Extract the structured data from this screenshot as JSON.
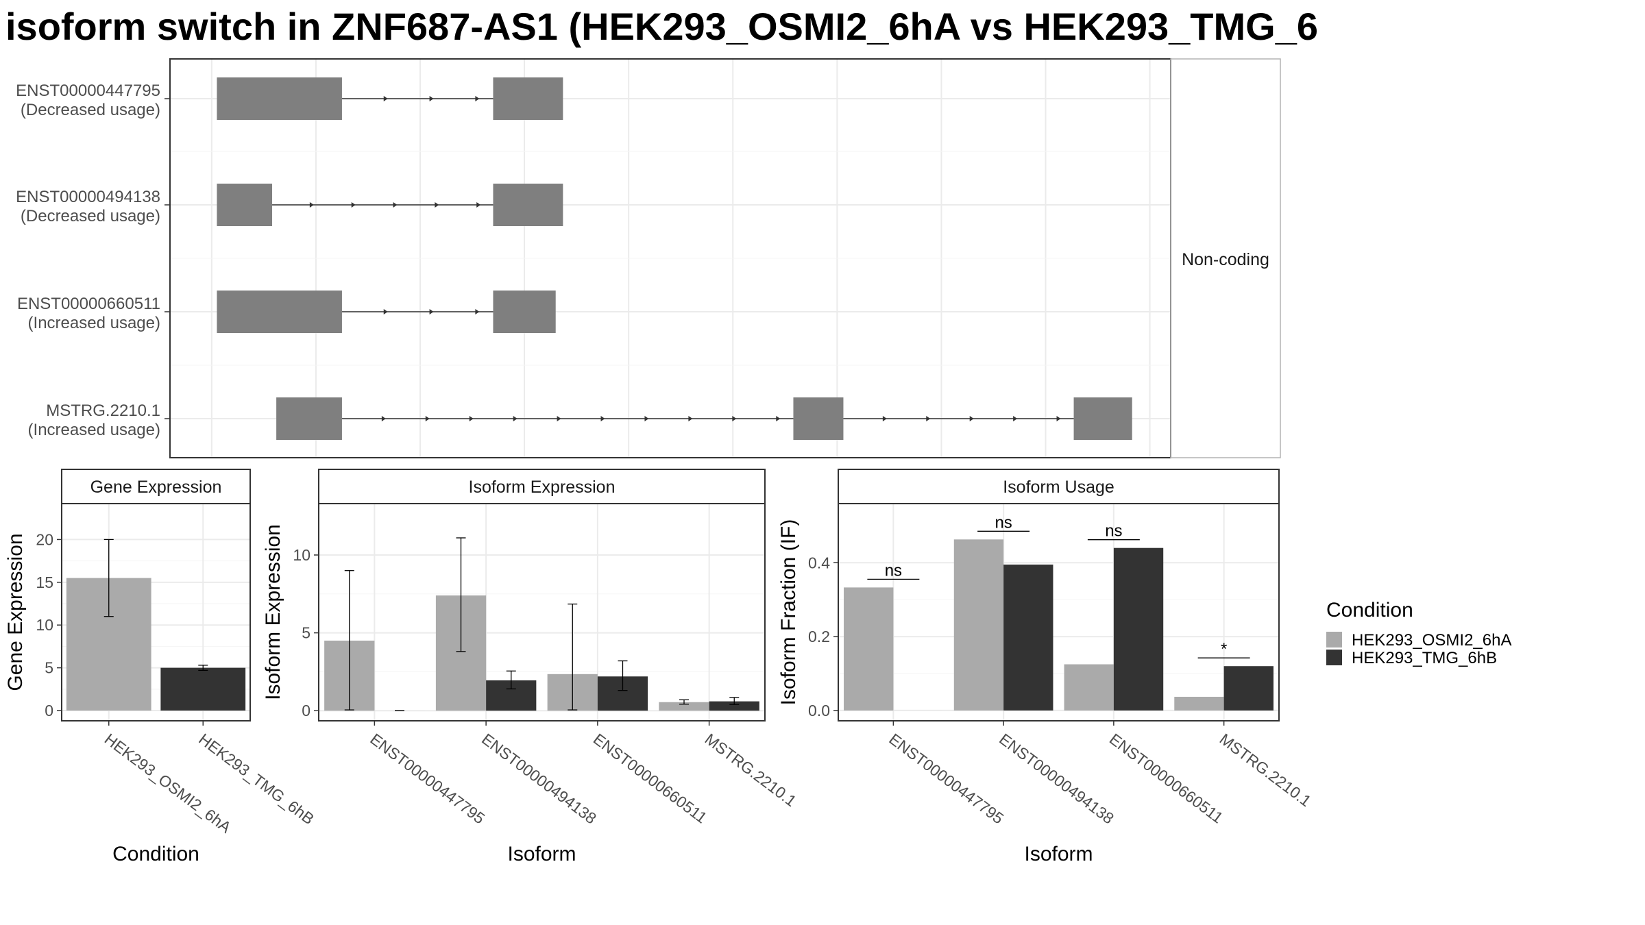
{
  "title": "isoform switch in ZNF687-AS1 (HEK293_OSMI2_6hA vs HEK293_TMG_6",
  "colors": {
    "condition_a": "#aaaaaa",
    "condition_b": "#333333",
    "exon": "#7f7f7f",
    "grid": "#ebebeb",
    "panel_border": "#333333"
  },
  "chart_data": [
    {
      "type": "gene-structure",
      "facet_label": "Non-coding",
      "isoforms": [
        {
          "id": "ENST00000447795",
          "usage": "(Decreased usage)",
          "exons": [
            [
              0.05,
              1.25
            ],
            [
              2.7,
              3.37
            ]
          ]
        },
        {
          "id": "ENST00000494138",
          "usage": "(Decreased usage)",
          "exons": [
            [
              0.05,
              0.58
            ],
            [
              2.7,
              3.37
            ]
          ]
        },
        {
          "id": "ENST00000660511",
          "usage": "(Increased usage)",
          "exons": [
            [
              0.05,
              1.25
            ],
            [
              2.7,
              3.3
            ]
          ]
        },
        {
          "id": "MSTRG.2210.1",
          "usage": "(Increased usage)",
          "exons": [
            [
              0.62,
              1.25
            ],
            [
              5.58,
              6.06
            ],
            [
              8.27,
              8.83
            ]
          ]
        }
      ],
      "xlim": [
        -0.4,
        9.2
      ]
    },
    {
      "type": "bar",
      "strip": "Gene Expression",
      "xlabel": "Condition",
      "ylabel": "Gene Expression",
      "categories": [
        "HEK293_OSMI2_6hA",
        "HEK293_TMG_6hB"
      ],
      "series": [
        {
          "name": "HEK293_OSMI2_6hA",
          "values": [
            15.5,
            null
          ],
          "errors": [
            [
              11.0,
              20.0
            ],
            null
          ]
        },
        {
          "name": "HEK293_TMG_6hB",
          "values": [
            null,
            5.0
          ],
          "errors": [
            null,
            [
              4.7,
              5.3
            ]
          ]
        }
      ],
      "yticks": [
        0,
        5,
        10,
        15,
        20
      ],
      "ylim": [
        -1.2,
        24.2
      ]
    },
    {
      "type": "bar",
      "strip": "Isoform Expression",
      "xlabel": "Isoform",
      "ylabel": "Isoform Expression",
      "categories": [
        "ENST00000447795",
        "ENST00000494138",
        "ENST00000660511",
        "MSTRG.2210.1"
      ],
      "series": [
        {
          "name": "HEK293_OSMI2_6hA",
          "values": [
            4.5,
            7.4,
            2.35,
            0.55
          ],
          "errors": [
            [
              0.05,
              9.0
            ],
            [
              3.8,
              11.1
            ],
            [
              0.05,
              6.85
            ],
            [
              0.42,
              0.7
            ]
          ]
        },
        {
          "name": "HEK293_TMG_6hB",
          "values": [
            0.0,
            1.95,
            2.2,
            0.6
          ],
          "errors": [
            [
              0.0,
              0.0
            ],
            [
              1.4,
              2.55
            ],
            [
              1.3,
              3.2
            ],
            [
              0.4,
              0.85
            ]
          ]
        }
      ],
      "yticks": [
        0,
        5,
        10
      ],
      "ylim": [
        -0.65,
        13.3
      ]
    },
    {
      "type": "bar",
      "strip": "Isoform Usage",
      "xlabel": "Isoform",
      "ylabel": "Isoform Fraction (IF)",
      "categories": [
        "ENST00000447795",
        "ENST00000494138",
        "ENST00000660511",
        "MSTRG.2210.1"
      ],
      "series": [
        {
          "name": "HEK293_OSMI2_6hA",
          "values": [
            0.333,
            0.463,
            0.125,
            0.037
          ]
        },
        {
          "name": "HEK293_TMG_6hB",
          "values": [
            0.0,
            0.395,
            0.44,
            0.12
          ]
        }
      ],
      "significance": [
        "ns",
        "ns",
        "ns",
        "*"
      ],
      "yticks": [
        0.0,
        0.2,
        0.4
      ],
      "ytick_labels": [
        "0.0",
        "0.2",
        "0.4"
      ],
      "ylim": [
        -0.028,
        0.56
      ]
    }
  ],
  "legend": {
    "title": "Condition",
    "entries": [
      {
        "label": "HEK293_OSMI2_6hA",
        "color": "#aaaaaa"
      },
      {
        "label": "HEK293_TMG_6hB",
        "color": "#333333"
      }
    ]
  }
}
